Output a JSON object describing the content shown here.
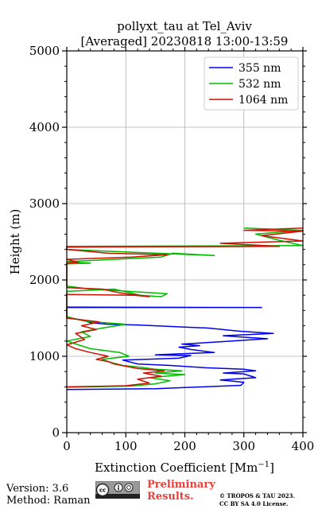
{
  "chart_data": {
    "type": "line",
    "title": "pollyxt_tau at Tel_Aviv",
    "subtitle": "[Averaged] 20230818 13:00-13:59",
    "xlabel": "Extinction Coefficient [Mm",
    "xlabel_superscript": "−1",
    "xlabel_close": "]",
    "ylabel": "Height (m)",
    "xlim": [
      0,
      400
    ],
    "ylim": [
      0,
      5000
    ],
    "x_ticks": [
      "0",
      "100",
      "200",
      "300",
      "400"
    ],
    "y_ticks": [
      "0",
      "1000",
      "2000",
      "3000",
      "4000",
      "5000"
    ],
    "grid": true,
    "legend_position": "top-right",
    "series": [
      {
        "name": "355 nm",
        "color": "#0000ee",
        "points": [
          [
            0,
            565
          ],
          [
            150,
            575
          ],
          [
            295,
            620
          ],
          [
            300,
            660
          ],
          [
            260,
            690
          ],
          [
            320,
            720
          ],
          [
            300,
            770
          ],
          [
            265,
            780
          ],
          [
            320,
            810
          ],
          [
            300,
            830
          ],
          [
            235,
            850
          ],
          [
            175,
            880
          ],
          [
            120,
            900
          ],
          [
            95,
            950
          ],
          [
            190,
            975
          ],
          [
            210,
            1010
          ],
          [
            150,
            1020
          ],
          [
            250,
            1050
          ],
          [
            210,
            1090
          ],
          [
            190,
            1120
          ],
          [
            225,
            1140
          ],
          [
            195,
            1160
          ],
          [
            260,
            1190
          ],
          [
            340,
            1230
          ],
          [
            300,
            1250
          ],
          [
            265,
            1270
          ],
          [
            350,
            1300
          ],
          [
            290,
            1330
          ],
          [
            240,
            1370
          ],
          [
            180,
            1390
          ],
          [
            120,
            1410
          ],
          [
            70,
            1420
          ],
          [
            40,
            1440
          ],
          [
            30,
            1470
          ],
          [
            15,
            1490
          ],
          [
            0,
            1500
          ],
          [
            0,
            1640
          ],
          [
            330,
            1640
          ],
          [
            0,
            1645
          ]
        ]
      },
      {
        "name": "532 nm",
        "color": "#00bb00",
        "points": [
          [
            0,
            595
          ],
          [
            110,
            610
          ],
          [
            150,
            640
          ],
          [
            175,
            680
          ],
          [
            140,
            720
          ],
          [
            200,
            760
          ],
          [
            150,
            780
          ],
          [
            195,
            810
          ],
          [
            150,
            830
          ],
          [
            120,
            860
          ],
          [
            95,
            880
          ],
          [
            75,
            920
          ],
          [
            60,
            960
          ],
          [
            105,
            1000
          ],
          [
            90,
            1050
          ],
          [
            40,
            1100
          ],
          [
            20,
            1150
          ],
          [
            0,
            1200
          ],
          [
            40,
            1260
          ],
          [
            25,
            1320
          ],
          [
            60,
            1370
          ],
          [
            100,
            1420
          ],
          [
            30,
            1460
          ],
          [
            0,
            1520
          ],
          [
            0,
            1850
          ],
          [
            80,
            1880
          ],
          [
            125,
            1800
          ],
          [
            160,
            1780
          ],
          [
            170,
            1820
          ],
          [
            40,
            1880
          ],
          [
            0,
            1920
          ],
          [
            0,
            2210
          ],
          [
            40,
            2220
          ],
          [
            0,
            2240
          ],
          [
            160,
            2300
          ],
          [
            180,
            2350
          ],
          [
            250,
            2320
          ],
          [
            90,
            2370
          ],
          [
            0,
            2400
          ],
          [
            0,
            2440
          ],
          [
            400,
            2450
          ],
          [
            360,
            2520
          ],
          [
            320,
            2600
          ],
          [
            400,
            2650
          ],
          [
            300,
            2680
          ]
        ]
      },
      {
        "name": "1064 nm",
        "color": "#cc1100",
        "points": [
          [
            0,
            600
          ],
          [
            100,
            615
          ],
          [
            140,
            650
          ],
          [
            120,
            700
          ],
          [
            160,
            740
          ],
          [
            130,
            780
          ],
          [
            165,
            810
          ],
          [
            120,
            840
          ],
          [
            100,
            870
          ],
          [
            80,
            900
          ],
          [
            70,
            930
          ],
          [
            50,
            960
          ],
          [
            70,
            1000
          ],
          [
            40,
            1050
          ],
          [
            15,
            1100
          ],
          [
            0,
            1150
          ],
          [
            30,
            1220
          ],
          [
            15,
            1300
          ],
          [
            50,
            1350
          ],
          [
            25,
            1400
          ],
          [
            55,
            1450
          ],
          [
            0,
            1500
          ],
          [
            0,
            1810
          ],
          [
            115,
            1800
          ],
          [
            140,
            1780
          ],
          [
            90,
            1830
          ],
          [
            60,
            1880
          ],
          [
            0,
            1900
          ],
          [
            0,
            2220
          ],
          [
            20,
            2230
          ],
          [
            0,
            2270
          ],
          [
            110,
            2300
          ],
          [
            170,
            2330
          ],
          [
            70,
            2350
          ],
          [
            0,
            2400
          ],
          [
            0,
            2430
          ],
          [
            360,
            2440
          ],
          [
            260,
            2480
          ],
          [
            400,
            2510
          ],
          [
            330,
            2580
          ],
          [
            400,
            2640
          ],
          [
            300,
            2650
          ],
          [
            400,
            2680
          ]
        ]
      }
    ]
  },
  "footer": {
    "version": "Version: 3.6",
    "method": "Method: Raman",
    "preliminary_line1": "Preliminary",
    "preliminary_line2": "Results.",
    "copyright_line1": "© TROPOS & TAU 2023.",
    "copyright_line2": "CC BY SA 4.0 License.",
    "license_icon": "cc-by-sa-icon"
  }
}
